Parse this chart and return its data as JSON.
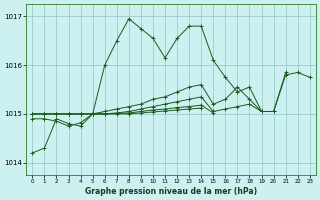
{
  "xlabel": "Graphe pression niveau de la mer (hPa)",
  "background_color": "#cdf0f0",
  "grid_color": "#99cccc",
  "line_color": "#1a5c1a",
  "xlim": [
    -0.5,
    23.5
  ],
  "ylim": [
    1013.75,
    1017.25
  ],
  "yticks": [
    1014,
    1015,
    1016,
    1017
  ],
  "xticks": [
    0,
    1,
    2,
    3,
    4,
    5,
    6,
    7,
    8,
    9,
    10,
    11,
    12,
    13,
    14,
    15,
    16,
    17,
    18,
    19,
    20,
    21,
    22,
    23
  ],
  "lines": [
    [
      1014.2,
      1014.3,
      1014.9,
      1014.8,
      1014.75,
      1015.0,
      1016.0,
      1016.5,
      1016.95,
      1016.75,
      1016.55,
      1016.15,
      1016.55,
      1016.8,
      1016.8,
      1016.1,
      1015.75,
      1015.45,
      1015.55,
      1015.05,
      1015.05,
      1015.8,
      1015.85,
      1015.75
    ],
    [
      1014.9,
      1014.9,
      1014.85,
      1014.75,
      1014.82,
      1015.0,
      1015.05,
      1015.1,
      1015.15,
      1015.2,
      1015.3,
      1015.35,
      1015.45,
      1015.55,
      1015.6,
      1015.2,
      1015.3,
      1015.55,
      1015.3,
      1015.05,
      1015.05,
      1015.85,
      null,
      null
    ],
    [
      1015.0,
      1015.0,
      1015.0,
      1015.0,
      1015.0,
      1015.0,
      1015.0,
      1015.02,
      1015.05,
      1015.1,
      1015.15,
      1015.2,
      1015.25,
      1015.3,
      1015.35,
      1015.05,
      1015.1,
      1015.15,
      1015.2,
      1015.05,
      1015.05,
      null,
      null,
      null
    ],
    [
      1015.0,
      1015.0,
      1015.0,
      1015.0,
      1015.0,
      1015.0,
      1015.0,
      1015.01,
      1015.02,
      1015.05,
      1015.08,
      1015.1,
      1015.13,
      1015.15,
      1015.18,
      1015.02,
      null,
      null,
      null,
      null,
      null,
      null,
      null,
      null
    ],
    [
      1015.0,
      1015.0,
      1015.0,
      1015.0,
      1015.0,
      1015.0,
      1015.0,
      1015.0,
      1015.0,
      1015.02,
      1015.04,
      1015.06,
      1015.08,
      1015.1,
      1015.12,
      null,
      null,
      null,
      null,
      null,
      null,
      null,
      null,
      null
    ]
  ]
}
